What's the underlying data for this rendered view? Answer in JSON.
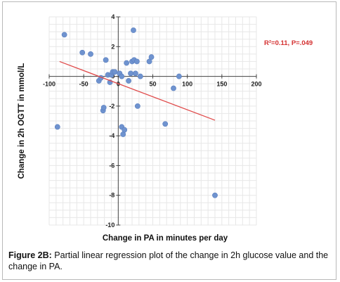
{
  "chart_data": {
    "type": "scatter",
    "xlabel": "Change in  PA in minutes per day",
    "ylabel": "Change in 2h OGTT in mmol/L",
    "xlim": [
      -100,
      200
    ],
    "ylim": [
      -10,
      4
    ],
    "x_ticks": [
      -100,
      -50,
      0,
      50,
      100,
      150,
      200
    ],
    "y_ticks": [
      4,
      2,
      0,
      -2,
      -4,
      -6,
      -8,
      -10
    ],
    "x_tick_labels": [
      "-100",
      "-50",
      "0",
      "50",
      "100",
      "150",
      "200"
    ],
    "y_tick_labels": [
      "4",
      "2",
      "0",
      "-2",
      "-4",
      "-6",
      "-8",
      "-10"
    ],
    "grid": true,
    "point_color": "#6f93cf",
    "line_color": "#e04b4b",
    "annotation": "R²=0.11, P=.049",
    "annotation_color": "#d43030",
    "regression_line": {
      "x": [
        -85,
        140
      ],
      "y": [
        1.0,
        -2.95
      ]
    },
    "points": [
      {
        "x": -78,
        "y": 2.8
      },
      {
        "x": -52,
        "y": 1.6
      },
      {
        "x": -40,
        "y": 1.5
      },
      {
        "x": -28,
        "y": -0.3
      },
      {
        "x": -25,
        "y": -0.1
      },
      {
        "x": -22,
        "y": -2.3
      },
      {
        "x": -21,
        "y": -2.1
      },
      {
        "x": -18,
        "y": 1.1
      },
      {
        "x": -15,
        "y": 0.1
      },
      {
        "x": -12,
        "y": -0.4
      },
      {
        "x": -10,
        "y": 0.1
      },
      {
        "x": -8,
        "y": 0.3
      },
      {
        "x": -5,
        "y": 0.3
      },
      {
        "x": 2,
        "y": 0.2
      },
      {
        "x": 5,
        "y": 0.0
      },
      {
        "x": 5,
        "y": -3.4
      },
      {
        "x": 7,
        "y": -3.9
      },
      {
        "x": 9,
        "y": -3.6
      },
      {
        "x": 12,
        "y": 0.9
      },
      {
        "x": 15,
        "y": -0.3
      },
      {
        "x": 18,
        "y": 0.2
      },
      {
        "x": 20,
        "y": 1.0
      },
      {
        "x": 22,
        "y": 3.1
      },
      {
        "x": 23,
        "y": 1.1
      },
      {
        "x": 25,
        "y": 0.2
      },
      {
        "x": 27,
        "y": 1.0
      },
      {
        "x": 28,
        "y": -2.0
      },
      {
        "x": 32,
        "y": 0.0
      },
      {
        "x": 45,
        "y": 1.0
      },
      {
        "x": 48,
        "y": 1.3
      },
      {
        "x": 68,
        "y": -3.2
      },
      {
        "x": 80,
        "y": -0.8
      },
      {
        "x": 88,
        "y": 0.0
      },
      {
        "x": -88,
        "y": -3.4
      },
      {
        "x": 140,
        "y": -8.0
      }
    ]
  },
  "caption": {
    "label": "Figure 2B:",
    "text": " Partial linear regression plot of the change in 2h glucose value and the change in PA."
  }
}
